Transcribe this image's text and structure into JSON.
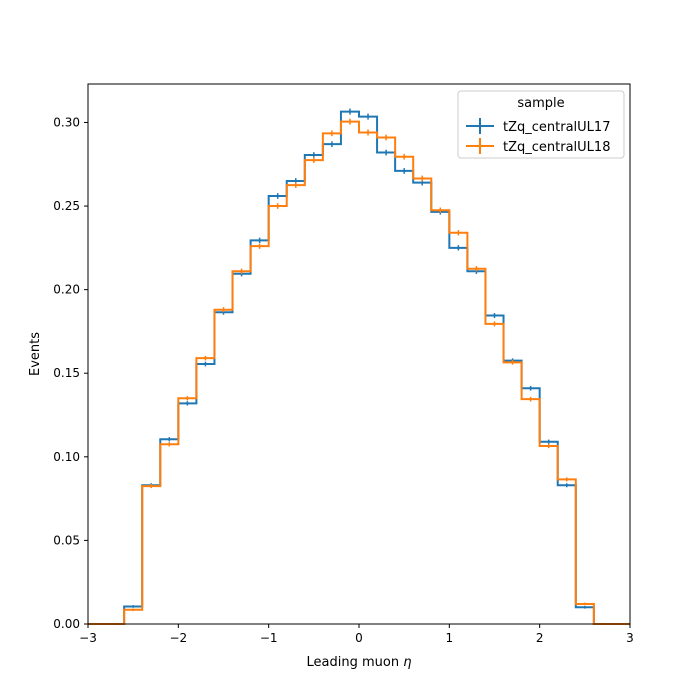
{
  "chart_data": {
    "type": "step",
    "title": "",
    "xlabel": "Leading muon",
    "xlabel_symbol": "η",
    "ylabel": "Events",
    "xlim": [
      -3,
      3
    ],
    "ylim": [
      0,
      0.323
    ],
    "grid": false,
    "x_ticks": [
      -3,
      -2,
      -1,
      0,
      1,
      2,
      3
    ],
    "x_tick_labels": [
      "−3",
      "−2",
      "−1",
      "0",
      "1",
      "2",
      "3"
    ],
    "y_ticks": [
      0,
      0.05,
      0.1,
      0.15,
      0.2,
      0.25,
      0.3
    ],
    "y_tick_labels": [
      "0.00",
      "0.05",
      "0.10",
      "0.15",
      "0.20",
      "0.25",
      "0.30"
    ],
    "bin_edges": [
      -3.0,
      -2.8,
      -2.6,
      -2.4,
      -2.2,
      -2.0,
      -1.8,
      -1.6,
      -1.4,
      -1.2,
      -1.0,
      -0.8,
      -0.6,
      -0.4,
      -0.2,
      0.0,
      0.2,
      0.4,
      0.6,
      0.8,
      1.0,
      1.2,
      1.4,
      1.6,
      1.8,
      2.0,
      2.2,
      2.4,
      2.6,
      2.8,
      3.0
    ],
    "legend": {
      "title": "sample",
      "position": "upper right"
    },
    "series": [
      {
        "name": "tZq_centralUL17",
        "color": "#1f77b4",
        "values": [
          0,
          0,
          0.0105,
          0.083,
          0.1105,
          0.132,
          0.1555,
          0.1865,
          0.2095,
          0.2295,
          0.256,
          0.265,
          0.2805,
          0.287,
          0.3065,
          0.3035,
          0.282,
          0.271,
          0.264,
          0.2465,
          0.225,
          0.211,
          0.1845,
          0.1575,
          0.141,
          0.109,
          0.083,
          0.01,
          0,
          0
        ],
        "errors": [
          0,
          0,
          0.0008,
          0.0012,
          0.0013,
          0.0013,
          0.0014,
          0.0015,
          0.0016,
          0.0016,
          0.0017,
          0.0017,
          0.0017,
          0.0017,
          0.0018,
          0.0018,
          0.0017,
          0.0017,
          0.0017,
          0.0016,
          0.0016,
          0.0016,
          0.0015,
          0.0014,
          0.0014,
          0.0013,
          0.0012,
          0.0008,
          0,
          0
        ]
      },
      {
        "name": "tZq_centralUL18",
        "color": "#ff7f0e",
        "values": [
          0,
          0,
          0.0085,
          0.0825,
          0.1075,
          0.135,
          0.159,
          0.188,
          0.211,
          0.226,
          0.25,
          0.2625,
          0.2775,
          0.2935,
          0.3005,
          0.294,
          0.291,
          0.2795,
          0.2665,
          0.2475,
          0.234,
          0.2125,
          0.1795,
          0.1565,
          0.1345,
          0.1065,
          0.0865,
          0.012,
          0,
          0
        ],
        "errors": [
          0,
          0,
          0.0008,
          0.0012,
          0.0013,
          0.0013,
          0.0014,
          0.0015,
          0.0016,
          0.0016,
          0.0017,
          0.0017,
          0.0017,
          0.0017,
          0.0018,
          0.0018,
          0.0017,
          0.0017,
          0.0017,
          0.0016,
          0.0016,
          0.0016,
          0.0015,
          0.0014,
          0.0014,
          0.0013,
          0.0012,
          0.0008,
          0,
          0
        ]
      }
    ]
  }
}
